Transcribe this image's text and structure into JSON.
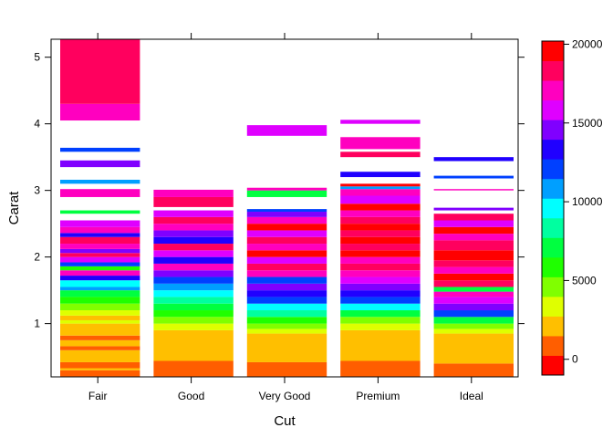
{
  "chart_data": {
    "type": "heatmap",
    "xlabel": "Cut",
    "ylabel": "Carat",
    "categories": [
      "Fair",
      "Good",
      "Very Good",
      "Premium",
      "Ideal"
    ],
    "ylim": [
      0.2,
      5.27
    ],
    "yticks": [
      1,
      2,
      3,
      4,
      5
    ],
    "colorbar": {
      "range": [
        -1000,
        20200
      ],
      "ticks": [
        0,
        5000,
        10000,
        15000,
        20000
      ],
      "colors": [
        "#FF0000",
        "#FF5E00",
        "#FFBF00",
        "#DFFF00",
        "#80FF00",
        "#1FFF00",
        "#00FF40",
        "#00FFA0",
        "#00FFFF",
        "#009FFF",
        "#0040FF",
        "#2000FF",
        "#8000FF",
        "#DF00FF",
        "#FF00BF",
        "#FF005E",
        "#FF0000"
      ]
    },
    "cells": {
      "Fair": [
        [
          0.2,
          0.3,
          1
        ],
        [
          0.3,
          0.33,
          2
        ],
        [
          0.33,
          0.42,
          1
        ],
        [
          0.42,
          0.6,
          2
        ],
        [
          0.6,
          0.66,
          1
        ],
        [
          0.66,
          0.75,
          2
        ],
        [
          0.75,
          0.82,
          1
        ],
        [
          0.82,
          1.0,
          2
        ],
        [
          1.0,
          1.05,
          3
        ],
        [
          1.05,
          1.12,
          2
        ],
        [
          1.12,
          1.2,
          3
        ],
        [
          1.2,
          1.3,
          4
        ],
        [
          1.3,
          1.4,
          5
        ],
        [
          1.4,
          1.5,
          6
        ],
        [
          1.5,
          1.55,
          9
        ],
        [
          1.55,
          1.65,
          8
        ],
        [
          1.65,
          1.72,
          11
        ],
        [
          1.72,
          1.8,
          14
        ],
        [
          1.8,
          1.86,
          5
        ],
        [
          1.86,
          1.92,
          10
        ],
        [
          1.92,
          2.0,
          13
        ],
        [
          2.0,
          2.06,
          15
        ],
        [
          2.06,
          2.12,
          12
        ],
        [
          2.12,
          2.2,
          14
        ],
        [
          2.2,
          2.3,
          15
        ],
        [
          2.3,
          2.36,
          11
        ],
        [
          2.36,
          2.45,
          14
        ],
        [
          2.45,
          2.55,
          13
        ],
        [
          2.65,
          2.7,
          6
        ],
        [
          2.9,
          3.02,
          14
        ],
        [
          3.1,
          3.16,
          9
        ],
        [
          3.35,
          3.45,
          12
        ],
        [
          3.58,
          3.64,
          10
        ],
        [
          4.05,
          4.3,
          14
        ],
        [
          4.3,
          5.27,
          15
        ]
      ],
      "Good": [
        [
          0.2,
          0.44,
          1
        ],
        [
          0.44,
          0.9,
          2
        ],
        [
          0.9,
          1.0,
          3
        ],
        [
          1.0,
          1.1,
          4
        ],
        [
          1.1,
          1.2,
          5
        ],
        [
          1.2,
          1.3,
          6
        ],
        [
          1.3,
          1.4,
          7
        ],
        [
          1.4,
          1.5,
          8
        ],
        [
          1.5,
          1.6,
          9
        ],
        [
          1.6,
          1.7,
          10
        ],
        [
          1.7,
          1.8,
          12
        ],
        [
          1.8,
          1.9,
          14
        ],
        [
          1.9,
          2.0,
          11
        ],
        [
          2.0,
          2.1,
          13
        ],
        [
          2.1,
          2.2,
          15
        ],
        [
          2.2,
          2.3,
          11
        ],
        [
          2.3,
          2.4,
          12
        ],
        [
          2.4,
          2.5,
          14
        ],
        [
          2.5,
          2.6,
          15
        ],
        [
          2.6,
          2.7,
          13
        ],
        [
          2.75,
          2.9,
          15
        ],
        [
          2.9,
          3.01,
          14
        ]
      ],
      "Very Good": [
        [
          0.2,
          0.42,
          1
        ],
        [
          0.42,
          0.85,
          2
        ],
        [
          0.85,
          0.92,
          3
        ],
        [
          0.92,
          1.0,
          4
        ],
        [
          1.0,
          1.1,
          5
        ],
        [
          1.1,
          1.2,
          7
        ],
        [
          1.2,
          1.3,
          8
        ],
        [
          1.3,
          1.4,
          10
        ],
        [
          1.4,
          1.5,
          11
        ],
        [
          1.5,
          1.6,
          12
        ],
        [
          1.6,
          1.7,
          10
        ],
        [
          1.7,
          1.8,
          14
        ],
        [
          1.8,
          1.9,
          15
        ],
        [
          1.9,
          2.0,
          13
        ],
        [
          2.0,
          2.1,
          16
        ],
        [
          2.1,
          2.2,
          14
        ],
        [
          2.2,
          2.3,
          15
        ],
        [
          2.3,
          2.4,
          13
        ],
        [
          2.4,
          2.5,
          16
        ],
        [
          2.5,
          2.6,
          14
        ],
        [
          2.6,
          2.68,
          12
        ],
        [
          2.68,
          2.72,
          10
        ],
        [
          2.9,
          3.0,
          6
        ],
        [
          3.0,
          3.04,
          14
        ],
        [
          3.82,
          3.98,
          13
        ]
      ],
      "Premium": [
        [
          0.2,
          0.44,
          1
        ],
        [
          0.44,
          0.9,
          2
        ],
        [
          0.9,
          1.0,
          3
        ],
        [
          1.0,
          1.1,
          4
        ],
        [
          1.1,
          1.2,
          6
        ],
        [
          1.2,
          1.3,
          8
        ],
        [
          1.3,
          1.4,
          10
        ],
        [
          1.4,
          1.5,
          11
        ],
        [
          1.5,
          1.6,
          12
        ],
        [
          1.6,
          1.7,
          13
        ],
        [
          1.7,
          1.8,
          14
        ],
        [
          1.8,
          1.9,
          15
        ],
        [
          1.9,
          2.0,
          14
        ],
        [
          2.0,
          2.1,
          16
        ],
        [
          2.1,
          2.2,
          15
        ],
        [
          2.2,
          2.3,
          16
        ],
        [
          2.3,
          2.4,
          15
        ],
        [
          2.4,
          2.5,
          16
        ],
        [
          2.5,
          2.6,
          15
        ],
        [
          2.6,
          2.7,
          14
        ],
        [
          2.7,
          2.8,
          16
        ],
        [
          2.8,
          2.92,
          13
        ],
        [
          2.92,
          3.02,
          14
        ],
        [
          3.02,
          3.06,
          9
        ],
        [
          3.06,
          3.1,
          16
        ],
        [
          3.2,
          3.28,
          11
        ],
        [
          3.5,
          3.58,
          15
        ],
        [
          3.62,
          3.8,
          14
        ],
        [
          4.0,
          4.06,
          13
        ]
      ],
      "Ideal": [
        [
          0.2,
          0.4,
          1
        ],
        [
          0.4,
          0.85,
          2
        ],
        [
          0.85,
          0.92,
          3
        ],
        [
          0.92,
          1.0,
          4
        ],
        [
          1.0,
          1.1,
          6
        ],
        [
          1.1,
          1.2,
          10
        ],
        [
          1.2,
          1.3,
          12
        ],
        [
          1.3,
          1.4,
          13
        ],
        [
          1.4,
          1.48,
          14
        ],
        [
          1.48,
          1.55,
          6
        ],
        [
          1.55,
          1.65,
          15
        ],
        [
          1.65,
          1.75,
          16
        ],
        [
          1.75,
          1.85,
          14
        ],
        [
          1.85,
          1.95,
          15
        ],
        [
          1.95,
          2.1,
          16
        ],
        [
          2.1,
          2.25,
          15
        ],
        [
          2.25,
          2.35,
          14
        ],
        [
          2.35,
          2.45,
          16
        ],
        [
          2.45,
          2.55,
          13
        ],
        [
          2.55,
          2.65,
          15
        ],
        [
          2.7,
          2.74,
          12
        ],
        [
          3.0,
          3.02,
          14
        ],
        [
          3.18,
          3.22,
          10
        ],
        [
          3.44,
          3.5,
          11
        ]
      ]
    }
  }
}
